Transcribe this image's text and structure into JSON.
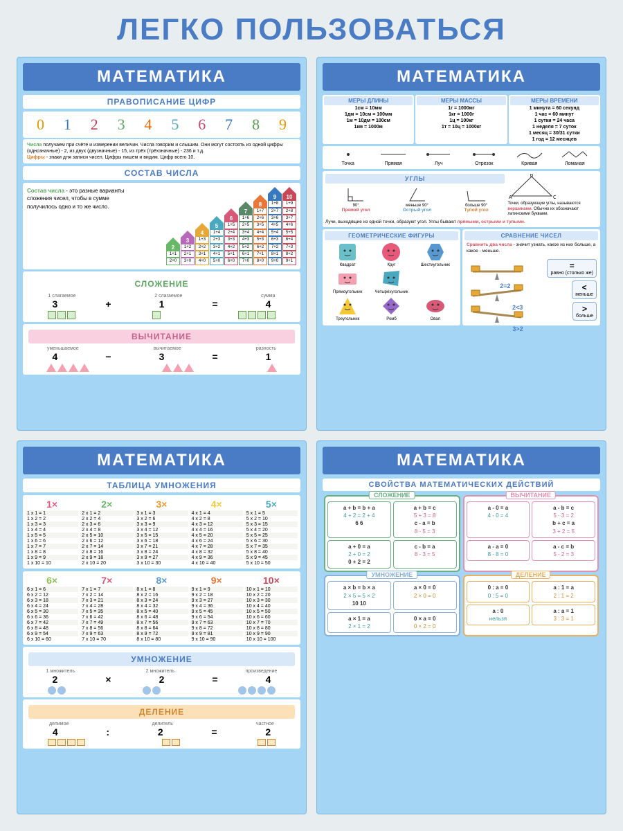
{
  "main_title": "ЛЕГКО ПОЛЬЗОВАТЬСЯ",
  "poster_title": "МАТЕМАТИКА",
  "p1": {
    "s1": "ПРАВОПИСАНИЕ ЦИФР",
    "digits": [
      "0",
      "1",
      "2",
      "3",
      "4",
      "5",
      "6",
      "7",
      "8",
      "9"
    ],
    "digit_colors": [
      "#e89800",
      "#3878c0",
      "#c83850",
      "#5ba860",
      "#e86800",
      "#4aa8c0",
      "#c8486a",
      "#3878c0",
      "#58a050",
      "#e89800"
    ],
    "text1a": "Числа",
    "text1b": " получаем при счёте и измерении величин. Числа говорим и слышим. Они могут состоять из одной цифры (однозначные) - 2, из двух (двузначные) - 15, из трёх (трёхзначные) - 236 и т.д.",
    "text1c": "Цифры",
    "text1d": " - знаки для записи чисел. Цифры пишем и видим. Цифр всего 10.",
    "s2": "СОСТАВ ЧИСЛА",
    "compose_a": "Состав числа",
    "compose_b": " - это разные варианты сложения чисел, чтобы в сумме получилось одно и то же число.",
    "houses": [
      {
        "n": 2,
        "c": "#68b868",
        "rows": [
          "1+1",
          "2+0"
        ]
      },
      {
        "n": 3,
        "c": "#b868b8",
        "rows": [
          "1+2",
          "2+1",
          "3+0"
        ]
      },
      {
        "n": 4,
        "c": "#e8a838",
        "rows": [
          "1+3",
          "2+2",
          "3+1",
          "4+0"
        ]
      },
      {
        "n": 5,
        "c": "#4aa8c0",
        "rows": [
          "1+4",
          "2+3",
          "3+2",
          "4+1",
          "5+0"
        ]
      },
      {
        "n": 6,
        "c": "#d85878",
        "rows": [
          "1+5",
          "2+4",
          "3+3",
          "4+2",
          "5+1",
          "6+0"
        ]
      },
      {
        "n": 7,
        "c": "#588868",
        "rows": [
          "1+6",
          "2+5",
          "3+4",
          "4+3",
          "5+2",
          "6+1",
          "7+0"
        ]
      },
      {
        "n": 8,
        "c": "#e87838",
        "rows": [
          "1+7",
          "2+6",
          "3+5",
          "4+4",
          "5+3",
          "6+2",
          "7+1",
          "8+0"
        ]
      },
      {
        "n": 9,
        "c": "#3878c0",
        "rows": [
          "1+8",
          "2+7",
          "3+6",
          "4+5",
          "5+4",
          "6+3",
          "7+2",
          "8+1",
          "9+0"
        ]
      },
      {
        "n": 10,
        "c": "#c84858",
        "rows": [
          "1+9",
          "2+8",
          "3+7",
          "4+6",
          "5+5",
          "6+4",
          "7+3",
          "8+2",
          "9+1"
        ]
      }
    ],
    "s3": "СЛОЖЕНИЕ",
    "add_labels": [
      "1 слагаемое",
      "2 слагаемое",
      "сумма"
    ],
    "add_vals": [
      "3",
      "+",
      "1",
      "=",
      "4"
    ],
    "s4": "ВЫЧИТАНИЕ",
    "sub_labels": [
      "уменьшаемое",
      "вычитаемое",
      "разность"
    ],
    "sub_vals": [
      "4",
      "−",
      "3",
      "=",
      "1"
    ]
  },
  "p2": {
    "meas": [
      {
        "h": "МЕРЫ ДЛИНЫ",
        "l": [
          "1см = 10мм",
          "1дм = 10см = 100мм",
          "1м = 10дм = 100см",
          "1км = 1000м"
        ]
      },
      {
        "h": "МЕРЫ МАССЫ",
        "l": [
          "1г = 1000мг",
          "1кг = 1000г",
          "1ц = 100кг",
          "1т = 10ц = 1000кг"
        ]
      },
      {
        "h": "МЕРЫ ВРЕМЕНИ",
        "l": [
          "1 минута = 60 секунд",
          "1 час = 60 минут",
          "1 сутки = 24 часа",
          "1 неделя = 7 суток",
          "1 месяц = 30/31 сутки",
          "1 год = 12 месяцев"
        ]
      }
    ],
    "geo_labels": [
      "Точка",
      "Прямая",
      "Луч",
      "Отрезок",
      "Кривая",
      "Ломаная"
    ],
    "angles_title": "УГЛЫ",
    "angle_types": [
      "Прямой угол",
      "Острый угол",
      "Тупой угол"
    ],
    "angle_degs": [
      "90°",
      "меньше 90°",
      "больше 90°"
    ],
    "angle_colors": [
      "#d85060",
      "#5898d0",
      "#e08030"
    ],
    "angle_note1": "Точки, образующие углы, называются ",
    "angle_note1b": "вершинами",
    "angle_note1c": ". Обычно их обозначают латинскими буквами.",
    "angle_note2a": "Лучи, выходящие из одной точки, образуют угол. Углы бывают ",
    "angle_note2b": "прямыми, острыми и тупыми",
    "sh_title": "ГЕОМЕТРИЧЕСКИЕ ФИГУРЫ",
    "shapes": [
      {
        "n": "Квадрат",
        "c": "#6ac0c8"
      },
      {
        "n": "Круг",
        "c": "#e85878"
      },
      {
        "n": "Шестиугольник",
        "c": "#5898d0"
      },
      {
        "n": "Прямоугольник",
        "c": "#f5a0b0"
      },
      {
        "n": "Четырёхугольник",
        "c": "#4aa8c0"
      },
      {
        "n": "",
        "c": ""
      },
      {
        "n": "Треугольник",
        "c": "#f5c838"
      },
      {
        "n": "Ромб",
        "c": "#9868c8"
      },
      {
        "n": "Овал",
        "c": "#d85878"
      }
    ],
    "cmp_title": "СРАВНЕНИЕ ЧИСЕЛ",
    "cmp_text_a": "Сравнить два числа",
    "cmp_text_b": " - значит узнать, какое из них больше, а какое - меньше.",
    "cmp": [
      {
        "v": "2=2",
        "s": "=",
        "t": "равно (столько же)"
      },
      {
        "v": "2<3",
        "s": "<",
        "t": "меньше"
      },
      {
        "v": "3>2",
        "s": ">",
        "t": "больше"
      }
    ]
  },
  "p3": {
    "s1": "ТАБЛИЦА УМНОЖЕНИЯ",
    "colors": [
      "#e85878",
      "#68b868",
      "#e89828",
      "#f5c838",
      "#4aa8c0",
      "#8cc050",
      "#d85878",
      "#5898d0",
      "#e87838",
      "#c84858"
    ],
    "s2": "УМНОЖЕНИЕ",
    "mul_labels": [
      "1 множитель",
      "2 множитель",
      "произведение"
    ],
    "mul_vals": [
      "2",
      "×",
      "2",
      "=",
      "4"
    ],
    "s3": "ДЕЛЕНИЕ",
    "div_labels": [
      "делимое",
      "делитель",
      "частное"
    ],
    "div_vals": [
      "4",
      ":",
      "2",
      "=",
      "2"
    ]
  },
  "p4": {
    "s1": "СВОЙСТВА МАТЕМАТИЧЕСКИХ ДЕЙСТВИЙ",
    "groups": [
      {
        "t": "СЛОЖЕНИЕ",
        "c": "#68b080",
        "cells": [
          [
            "a + b = b + a",
            "4 + 2 = 2 + 4",
            "6        6"
          ],
          [
            "a + b = c",
            "5 + 3 = 8",
            "c - a = b",
            "8 - 5 = 3"
          ],
          [
            "a + 0 = a",
            "2 + 0 = 2",
            "0 + 2 = 2"
          ],
          [
            "c - b = a",
            "8 - 3 = 5"
          ]
        ]
      },
      {
        "t": "ВЫЧИТАНИЕ",
        "c": "#e090b0",
        "cells": [
          [
            "a - 0 = a",
            "4 - 0 = 4"
          ],
          [
            "a - b = c",
            "5 - 3 = 2",
            "b + c = a",
            "3 + 2 = 5"
          ],
          [
            "a - a = 0",
            "8 - 8 = 0"
          ],
          [
            "a - c = b",
            "5 - 2 = 3"
          ]
        ]
      },
      {
        "t": "УМНОЖЕНИЕ",
        "c": "#88b0d8",
        "cells": [
          [
            "a × b = b × a",
            "2 × 5 = 5 × 2",
            "10      10"
          ],
          [
            "a × 0 = 0",
            "2 × 0 = 0"
          ],
          [
            "a × 1 = a",
            "2 × 1 = 2"
          ],
          [
            "0 × a = 0",
            "0 × 2 = 0"
          ]
        ]
      },
      {
        "t": "ДЕЛЕНИЕ",
        "c": "#e8b060",
        "cells": [
          [
            "0 : a = 0",
            "0 : 5 = 0"
          ],
          [
            "a : 1 = a",
            "2 : 1 = 2"
          ],
          [
            "a : 0",
            "нельзя"
          ],
          [
            "a : a = 1",
            "3 : 3 = 1"
          ]
        ]
      }
    ]
  }
}
